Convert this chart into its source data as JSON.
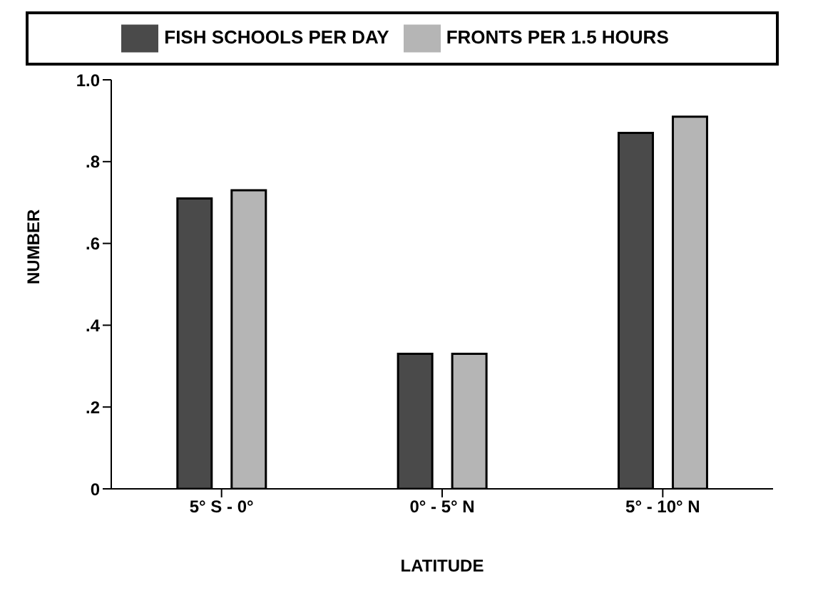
{
  "chart_data": {
    "type": "bar",
    "xlabel": "LATITUDE",
    "ylabel": "NUMBER",
    "categories": [
      "5° S - 0°",
      "0° - 5° N",
      "5° - 10° N"
    ],
    "series": [
      {
        "name": "FISH SCHOOLS PER DAY",
        "color": "#4a4a4a",
        "values": [
          0.71,
          0.33,
          0.87
        ]
      },
      {
        "name": "FRONTS PER 1.5 HOURS",
        "color": "#b5b5b5",
        "values": [
          0.73,
          0.33,
          0.91
        ]
      }
    ],
    "ylim": [
      0,
      1
    ],
    "yticks": [
      {
        "value": 0,
        "label": "0"
      },
      {
        "value": 0.2,
        "label": ".2"
      },
      {
        "value": 0.4,
        "label": ".4"
      },
      {
        "value": 0.6,
        "label": ".6"
      },
      {
        "value": 0.8,
        "label": ".8"
      },
      {
        "value": 1,
        "label": "1.0"
      }
    ],
    "grid": false,
    "legend": "top"
  }
}
